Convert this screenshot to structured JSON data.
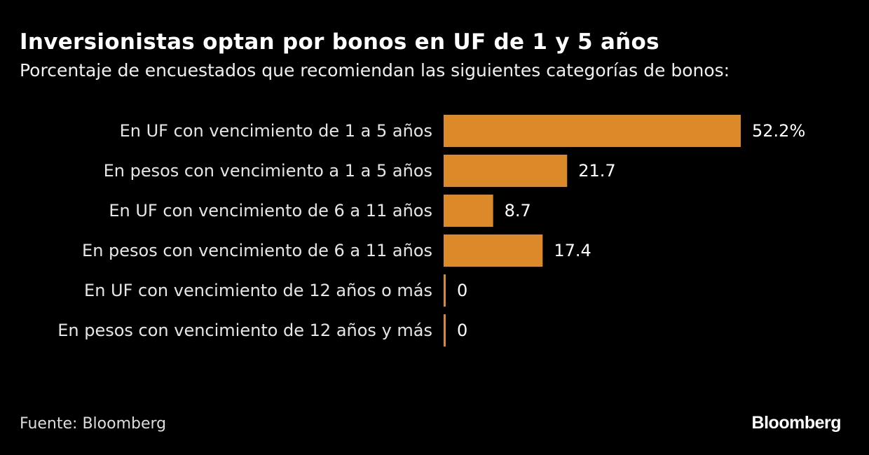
{
  "chart_data": {
    "type": "bar",
    "orientation": "horizontal",
    "title": "Inversionistas optan por bonos en UF de 1 y 5 años",
    "subtitle": "Porcentaje de encuestados que recomiendan las siguientes categorías de bonos:",
    "categories": [
      "En UF con vencimiento de 1 a 5 años",
      "En pesos con vencimiento a 1 a 5 años",
      "En UF con vencimiento de 6 a 11 años",
      "En pesos con vencimiento de 6 a 11 años",
      "En UF con vencimiento de 12 años o más",
      "En pesos con vencimiento de 12 años y más"
    ],
    "values": [
      52.2,
      21.7,
      8.7,
      17.4,
      0,
      0
    ],
    "value_labels": [
      "52.2%",
      "21.7",
      "8.7",
      "17.4",
      "0",
      "0"
    ],
    "xlim": [
      0,
      52.2
    ],
    "grid": false,
    "bar_color": "#dc8a29",
    "background": "#000000"
  },
  "footer": {
    "source": "Fuente: Bloomberg",
    "logo": "Bloomberg"
  }
}
